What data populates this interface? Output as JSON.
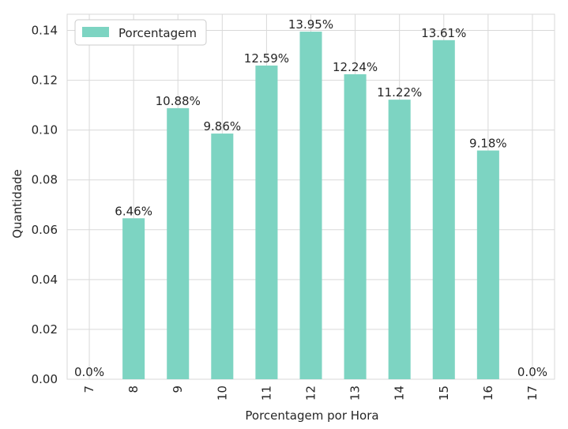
{
  "chart_data": {
    "type": "bar",
    "categories": [
      "7",
      "8",
      "9",
      "10",
      "11",
      "12",
      "13",
      "14",
      "15",
      "16",
      "17"
    ],
    "series": [
      {
        "name": "Porcentagem",
        "values": [
          0.0,
          0.0646,
          0.1088,
          0.0986,
          0.1259,
          0.1395,
          0.1224,
          0.1122,
          0.1361,
          0.0918,
          0.0
        ],
        "labels": [
          "0.0%",
          "6.46%",
          "10.88%",
          "9.86%",
          "12.59%",
          "13.95%",
          "12.24%",
          "11.22%",
          "13.61%",
          "9.18%",
          "0.0%"
        ]
      }
    ],
    "xlabel": "Porcentagem por Hora",
    "ylabel": "Quantidade",
    "yticks": [
      "0.00",
      "0.02",
      "0.04",
      "0.06",
      "0.08",
      "0.10",
      "0.12",
      "0.14"
    ],
    "ylim": [
      0,
      0.1465
    ],
    "grid": true,
    "legend_position": "top-left",
    "colors": {
      "bar": "#7dd4c2",
      "grid": "#d9d9d9",
      "text": "#262626"
    }
  }
}
